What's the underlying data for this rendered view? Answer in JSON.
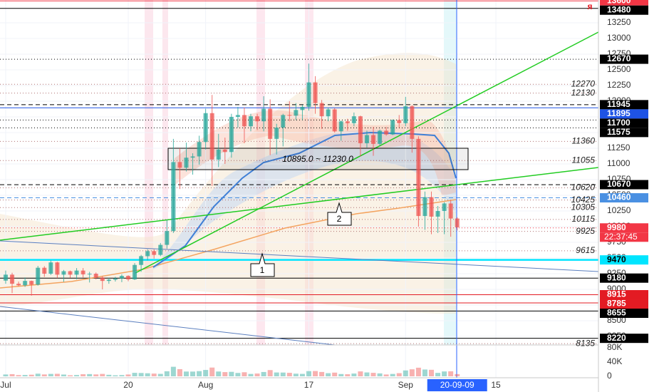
{
  "chart_data": {
    "type": "candlestick",
    "xlim": [
      -0.88,
      91.9
    ],
    "xticks": [
      {
        "value": 0,
        "label": "Jul"
      },
      {
        "value": 19,
        "label": "20"
      },
      {
        "value": 31,
        "label": "Aug"
      },
      {
        "value": 47,
        "label": "17"
      },
      {
        "value": 62,
        "label": "Sep"
      },
      {
        "value": 76,
        "label": "15"
      }
    ],
    "cursor": {
      "value": 70,
      "label": "20-09-09"
    },
    "ylim": [
      8114,
      13614
    ],
    "yticks": [
      8250,
      8500,
      8750,
      9000,
      9250,
      9500,
      9750,
      10000,
      10250,
      10500,
      10750,
      11000,
      11250,
      11500,
      11750,
      12000,
      12250,
      12500,
      12750,
      13000,
      13250
    ],
    "up_color": "#26a69a",
    "down_color": "#ef5350",
    "open": [
      9140,
      9235,
      9090,
      9065,
      9135,
      9075,
      9345,
      9250,
      9430,
      9235,
      9290,
      9235,
      9300,
      9240,
      9250,
      9190,
      9135,
      9155,
      9175,
      9215,
      9160,
      9390,
      9530,
      9610,
      9550,
      9710,
      9930,
      11030,
      10940,
      11100,
      11120,
      11350,
      11810,
      11070,
      11230,
      11190,
      11750,
      11780,
      11600,
      11760,
      11680,
      11880,
      11400,
      11580,
      11780,
      11770,
      11860,
      11910,
      12300,
      11970,
      11760,
      11870,
      11520,
      11680,
      11650,
      11760,
      11330,
      11460,
      11320,
      11530,
      11470,
      11700,
      11650,
      11920,
      11400,
      10170,
      10470,
      10160,
      10250,
      10370,
      10130
    ],
    "high": [
      9300,
      9265,
      9125,
      9190,
      9140,
      9375,
      9370,
      9460,
      9440,
      9310,
      9300,
      9340,
      9340,
      9280,
      9270,
      9210,
      9185,
      9200,
      9240,
      9225,
      9420,
      9550,
      9640,
      9640,
      9740,
      10110,
      11400,
      11250,
      11340,
      11170,
      11450,
      11880,
      12100,
      11480,
      11420,
      11800,
      11910,
      11900,
      11800,
      11800,
      12080,
      12030,
      11640,
      11800,
      12000,
      11970,
      11940,
      12600,
      12400,
      12020,
      11900,
      11890,
      11690,
      11720,
      11820,
      11770,
      11530,
      11590,
      11550,
      11590,
      11710,
      11780,
      12070,
      11940,
      11440,
      10560,
      10560,
      10330,
      10390,
      10420,
      10150
    ],
    "low": [
      9090,
      8940,
      9050,
      9040,
      8900,
      9060,
      9200,
      9230,
      9180,
      9120,
      9185,
      9160,
      9190,
      9110,
      9160,
      9000,
      9090,
      9125,
      9115,
      9130,
      9150,
      9280,
      9460,
      9490,
      9530,
      9650,
      9900,
      10600,
      10880,
      10830,
      10990,
      11230,
      10650,
      10950,
      11000,
      11100,
      11580,
      11330,
      11520,
      11540,
      11520,
      11140,
      11150,
      11280,
      11680,
      11700,
      11700,
      11850,
      11800,
      11560,
      11680,
      11500,
      11370,
      11530,
      11600,
      11120,
      11260,
      11130,
      11290,
      11450,
      11460,
      11580,
      11600,
      11180,
      10000,
      9950,
      9880,
      9900,
      9880,
      9840,
      9940
    ],
    "close": [
      9235,
      9090,
      9065,
      9135,
      9075,
      9345,
      9250,
      9430,
      9235,
      9290,
      9235,
      9300,
      9240,
      9250,
      9190,
      9135,
      9155,
      9175,
      9215,
      9160,
      9390,
      9530,
      9610,
      9550,
      9710,
      9930,
      11030,
      10940,
      11100,
      11120,
      11350,
      11810,
      11070,
      11230,
      11190,
      11750,
      11780,
      11600,
      11760,
      11680,
      11880,
      11400,
      11580,
      11780,
      11770,
      11860,
      11910,
      12300,
      11970,
      11760,
      11870,
      11520,
      11680,
      11650,
      11760,
      11330,
      11460,
      11320,
      11530,
      11470,
      11700,
      11650,
      11920,
      11400,
      10170,
      10470,
      10160,
      10250,
      10370,
      10130,
      9990
    ],
    "levels": [
      {
        "value": 13600,
        "color": "#f23645",
        "text_color": "#ffffff",
        "line": "solid"
      },
      {
        "value": 13480,
        "color": "#000000",
        "text_color": "#ffffff",
        "line": "solid"
      },
      {
        "value": 12670,
        "color": "#000000",
        "text_color": "#ffffff",
        "line": "dotted"
      },
      {
        "value": 11945,
        "color": "#000000",
        "text_color": "#ffffff",
        "line": "dashed"
      },
      {
        "value": 11895,
        "color": "#1e53e5",
        "text_color": "#ffffff",
        "line": "solid"
      },
      {
        "value": 11700,
        "color": "#000000",
        "text_color": "#ffffff",
        "line": "dotted"
      },
      {
        "value": 11575,
        "color": "#000000",
        "text_color": "#ffffff",
        "line": "dotted"
      },
      {
        "value": 10670,
        "color": "#000000",
        "text_color": "#ffffff",
        "line": "dashed"
      },
      {
        "value": 10460,
        "color": "#4a90e2",
        "text_color": "#ffffff",
        "line": "dashed"
      },
      {
        "value": 9980,
        "color": "#f23645",
        "text_color": "#ffffff",
        "line": "dotted"
      },
      {
        "value": 9470,
        "color": "#00e5ff",
        "text_color": "#000000",
        "line": "thick"
      },
      {
        "value": 9180,
        "color": "#000000",
        "text_color": "#ffffff",
        "line": "solid"
      },
      {
        "value": 8915,
        "color": "#e31b23",
        "text_color": "#ffffff",
        "line": "solid"
      },
      {
        "value": 8785,
        "color": "#e31b23",
        "text_color": "#ffffff",
        "line": "solid"
      },
      {
        "value": 8655,
        "color": "#000000",
        "text_color": "#ffffff",
        "line": "solid"
      },
      {
        "value": 8220,
        "color": "#000000",
        "text_color": "#ffffff",
        "line": "solid"
      }
    ],
    "countdown": "22:37:45",
    "plain_levels": [
      12270,
      12130,
      11360,
      11055,
      10620,
      10425,
      10305,
      10115,
      9925,
      9615,
      8135
    ],
    "range_label": "10895.0 ~ 11230.0",
    "callouts": [
      "1",
      "2"
    ],
    "volume": {
      "values": [
        5200,
        6100,
        3500,
        3800,
        4600,
        7400,
        5300,
        6800,
        7100,
        5000,
        3000,
        3700,
        5900,
        6300,
        5400,
        6800,
        4300,
        2900,
        3600,
        5200,
        9800,
        9400,
        8600,
        7700,
        6900,
        14200,
        26800,
        20100,
        13400,
        13300,
        14600,
        17900,
        24600,
        13500,
        11800,
        12600,
        9500,
        11400,
        6700,
        7800,
        12100,
        17500,
        10800,
        10600,
        9800,
        7400,
        6900,
        14600,
        14900,
        12200,
        8800,
        10400,
        6500,
        5900,
        7800,
        13800,
        10900,
        9800,
        8200,
        5200,
        6700,
        8900,
        16500,
        19700,
        24200,
        19100,
        18300,
        9600,
        13700,
        14100,
        6200
      ],
      "ylim": [
        0,
        88000
      ],
      "yticks": [
        0,
        {
          "value": 40000,
          "label": "40K"
        },
        {
          "value": 80000,
          "label": "80K"
        }
      ]
    }
  }
}
